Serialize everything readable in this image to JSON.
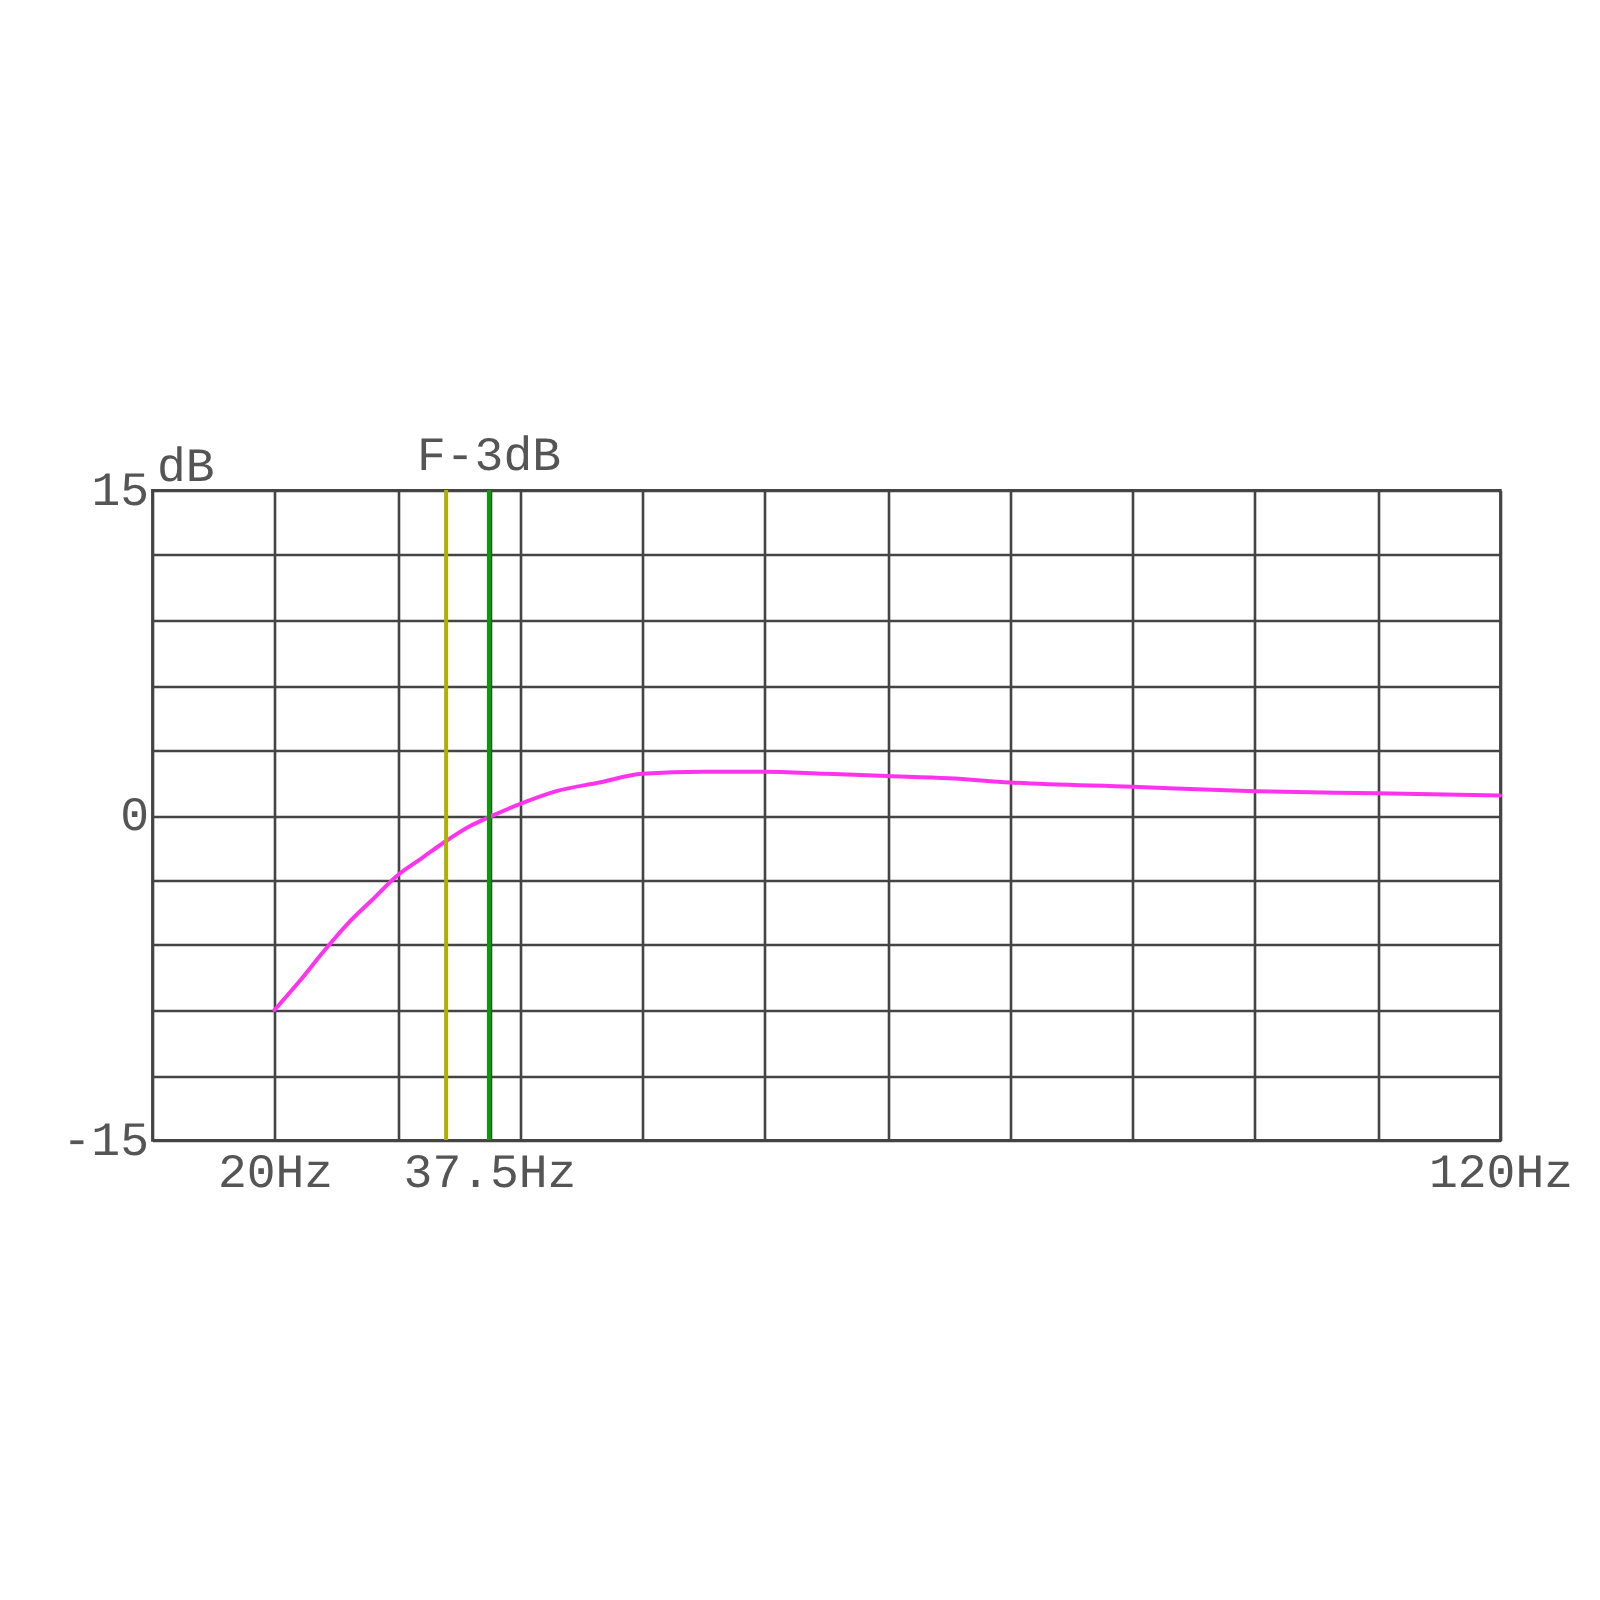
{
  "chart_data": {
    "type": "line",
    "ylabel": "dB",
    "x": [
      20,
      22,
      24,
      26,
      28,
      30,
      32,
      34,
      36,
      37.5,
      40,
      43,
      46.5,
      50,
      55,
      60,
      65,
      70,
      75,
      80,
      90,
      100,
      110,
      120
    ],
    "series": [
      {
        "color": "#ff33ee",
        "values": [
          -9,
          -7.7,
          -6.3,
          -5.0,
          -3.9,
          -2.8,
          -2.0,
          -1.2,
          -0.5,
          -0.1,
          0.5,
          1.1,
          1.5,
          1.9,
          2.0,
          2.0,
          1.9,
          1.8,
          1.7,
          1.5,
          1.3,
          1.1,
          1.0,
          0.9
        ]
      }
    ],
    "xlim": [
      10,
      120
    ],
    "xticks": [
      {
        "value": 10,
        "label": null
      },
      {
        "value": 20,
        "label": "20Hz"
      },
      {
        "value": 30,
        "label": null
      },
      {
        "value": 37.5,
        "label": "37.5Hz"
      },
      {
        "value": 40,
        "label": null
      },
      {
        "value": 50,
        "label": null
      },
      {
        "value": 60,
        "label": null
      },
      {
        "value": 70,
        "label": null
      },
      {
        "value": 80,
        "label": null
      },
      {
        "value": 90,
        "label": null
      },
      {
        "value": 100,
        "label": null
      },
      {
        "value": 110,
        "label": null
      },
      {
        "value": 120,
        "label": "120Hz"
      }
    ],
    "ylim": [
      -15,
      15
    ],
    "yticks": [
      -15,
      {
        "value": -12,
        "label": null
      },
      {
        "value": -9,
        "label": null
      },
      {
        "value": -6,
        "label": null
      },
      {
        "value": -3,
        "label": null
      },
      0,
      {
        "value": 3,
        "label": null
      },
      {
        "value": 6,
        "label": null
      },
      {
        "value": 9,
        "label": null
      },
      {
        "value": 12,
        "label": null
      },
      15
    ],
    "grid": true,
    "ref_lines": [
      {
        "axis": "x",
        "value": 34,
        "color": "#b0b000"
      },
      {
        "axis": "x",
        "value": 37.5,
        "label": "F-3dB",
        "color": "#00a000"
      }
    ]
  }
}
